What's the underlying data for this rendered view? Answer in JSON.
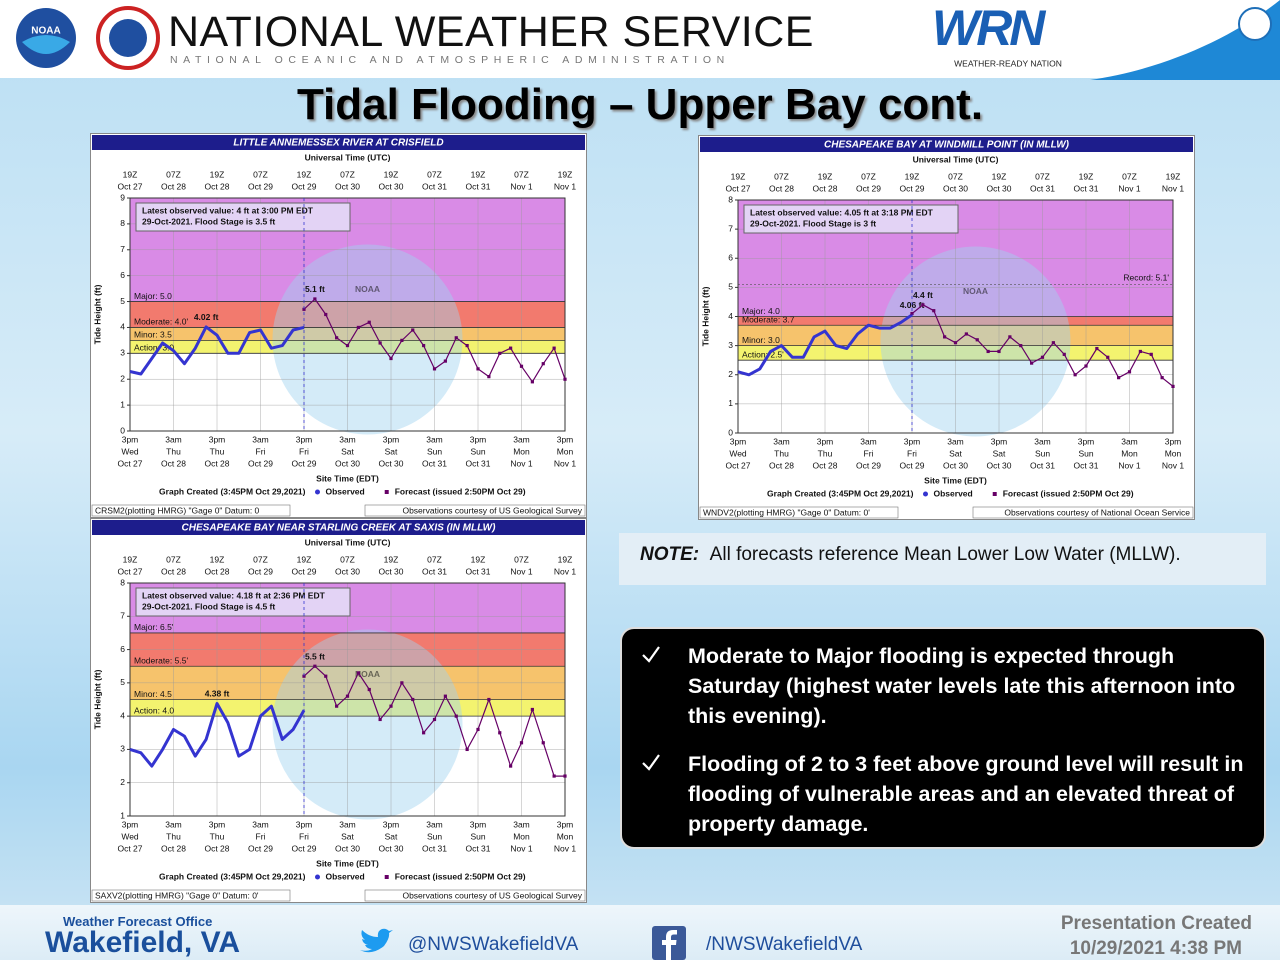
{
  "header": {
    "agency": "NATIONAL WEATHER SERVICE",
    "subtitle": "NATIONAL OCEANIC AND ATMOSPHERIC ADMINISTRATION",
    "noaa_logo": "NOAA",
    "wrn_logo": "WRN",
    "wrn_tagline": "WEATHER-READY NATION"
  },
  "title": "Tidal Flooding – Upper Bay cont.",
  "note": {
    "label": "NOTE:",
    "text": "All forecasts reference Mean Lower Low Water (MLLW)."
  },
  "bullets": [
    "Moderate to Major flooding is expected through Saturday (highest water levels late this afternoon into this evening).",
    "Flooding of 2 to 3 feet above ground level will result in flooding of vulnerable areas and an elevated threat of property damage."
  ],
  "footer": {
    "office_label": "Weather Forecast Office",
    "office": "Wakefield, VA",
    "twitter": "@NWSWakefieldVA",
    "facebook": "/NWSWakefieldVA",
    "created_label": "Presentation Created",
    "created": "10/29/2021 4:38 PM"
  },
  "chart_data": [
    {
      "type": "line",
      "title": "LITTLE ANNEMESSEX RIVER AT CRISFIELD",
      "watermark": "NOAA",
      "x_top_label": "Universal Time (UTC)",
      "x_label": "Site Time (EDT)",
      "y_label": "Tide Height (ft)",
      "utc_categories": [
        [
          "19Z",
          "Oct 27"
        ],
        null,
        null,
        null,
        [
          "07Z",
          "Oct 28"
        ],
        null,
        null,
        null,
        [
          "19Z",
          "Oct 28"
        ],
        null,
        null,
        null,
        [
          "07Z",
          "Oct 29"
        ],
        null,
        null,
        null,
        [
          "19Z",
          "Oct 29"
        ],
        null,
        null,
        null,
        [
          "07Z",
          "Oct 30"
        ],
        null,
        null,
        null,
        [
          "19Z",
          "Oct 30"
        ],
        null,
        null,
        null,
        [
          "07Z",
          "Oct 31"
        ],
        null,
        null,
        null,
        [
          "19Z",
          "Oct 31"
        ],
        null,
        null,
        null,
        [
          "07Z",
          "Nov 1"
        ],
        null,
        null,
        null,
        [
          "19Z",
          "Nov 1"
        ]
      ],
      "categories": [
        [
          "3pm",
          "Wed",
          "Oct 27"
        ],
        null,
        null,
        null,
        [
          "3am",
          "Thu",
          "Oct 28"
        ],
        null,
        null,
        null,
        [
          "3pm",
          "Thu",
          "Oct 28"
        ],
        null,
        null,
        null,
        [
          "3am",
          "Fri",
          "Oct 29"
        ],
        null,
        null,
        null,
        [
          "3pm",
          "Fri",
          "Oct 29"
        ],
        null,
        null,
        null,
        [
          "3am",
          "Sat",
          "Oct 30"
        ],
        null,
        null,
        null,
        [
          "3pm",
          "Sat",
          "Oct 30"
        ],
        null,
        null,
        null,
        [
          "3am",
          "Sun",
          "Oct 31"
        ],
        null,
        null,
        null,
        [
          "3pm",
          "Sun",
          "Oct 31"
        ],
        null,
        null,
        null,
        [
          "3am",
          "Mon",
          "Nov 1"
        ],
        null,
        null,
        null,
        [
          "3pm",
          "Mon",
          "Nov 1"
        ]
      ],
      "ylim": [
        0,
        9
      ],
      "yticks": [
        0,
        1,
        2,
        3,
        4,
        5,
        6,
        7,
        8,
        9
      ],
      "grid": true,
      "flood_stages": [
        {
          "value": 3.0,
          "label": "Action: 3.0",
          "color": "#f3f36f"
        },
        {
          "value": 3.5,
          "label": "Minor: 3.5",
          "color": "#f6c36c"
        },
        {
          "value": 4.0,
          "label": "Moderate: 4.0'",
          "color": "#f27a6e"
        },
        {
          "value": 5.0,
          "label": "Major: 5.0",
          "color": "#d98be6"
        }
      ],
      "latest": [
        "Latest observed value: 4 ft at 3:00 PM EDT",
        "29-Oct-2021. Flood Stage is 3.5 ft"
      ],
      "series": [
        {
          "name": "Observed",
          "color": "#3434d0",
          "marker": "line",
          "peak_label": "4.02 ft",
          "values": [
            2.3,
            2.2,
            2.8,
            3.4,
            3.1,
            2.6,
            3.2,
            4.02,
            3.7,
            3.0,
            3.0,
            3.8,
            3.9,
            3.2,
            3.3,
            3.9,
            4.0,
            null,
            null,
            null,
            null,
            null,
            null,
            null,
            null,
            null,
            null,
            null,
            null,
            null,
            null,
            null,
            null,
            null,
            null,
            null,
            null,
            null,
            null,
            null,
            null
          ]
        },
        {
          "name": "Forecast (issued 2:50PM Oct 29)",
          "color": "#660066",
          "marker": "square",
          "peak_label": "5.1 ft",
          "values": [
            null,
            null,
            null,
            null,
            null,
            null,
            null,
            null,
            null,
            null,
            null,
            null,
            null,
            null,
            null,
            null,
            4.7,
            5.1,
            4.5,
            3.6,
            3.3,
            4.0,
            4.2,
            3.4,
            2.8,
            3.5,
            3.9,
            3.3,
            2.4,
            2.7,
            3.6,
            3.3,
            2.4,
            2.1,
            3.0,
            3.2,
            2.5,
            1.9,
            2.6,
            3.2,
            2.0
          ]
        }
      ],
      "graph_created": "Graph Created (3:45PM Oct 29,2021)",
      "footer": [
        "CRSM2(plotting HMRG) \"Gage 0\" Datum: 0",
        "Observations courtesy of US Geological Survey"
      ]
    },
    {
      "type": "line",
      "title": "CHESAPEAKE BAY AT WINDMILL POINT (IN MLLW)",
      "watermark": "NOAA",
      "x_top_label": "Universal Time (UTC)",
      "x_label": "Site Time (EDT)",
      "y_label": "Tide Height (ft)",
      "utc_categories": [
        [
          "19Z",
          "Oct 27"
        ],
        null,
        null,
        null,
        [
          "07Z",
          "Oct 28"
        ],
        null,
        null,
        null,
        [
          "19Z",
          "Oct 28"
        ],
        null,
        null,
        null,
        [
          "07Z",
          "Oct 29"
        ],
        null,
        null,
        null,
        [
          "19Z",
          "Oct 29"
        ],
        null,
        null,
        null,
        [
          "07Z",
          "Oct 30"
        ],
        null,
        null,
        null,
        [
          "19Z",
          "Oct 30"
        ],
        null,
        null,
        null,
        [
          "07Z",
          "Oct 31"
        ],
        null,
        null,
        null,
        [
          "19Z",
          "Oct 31"
        ],
        null,
        null,
        null,
        [
          "07Z",
          "Nov 1"
        ],
        null,
        null,
        null,
        [
          "19Z",
          "Nov 1"
        ]
      ],
      "categories": [
        [
          "3pm",
          "Wed",
          "Oct 27"
        ],
        null,
        null,
        null,
        [
          "3am",
          "Thu",
          "Oct 28"
        ],
        null,
        null,
        null,
        [
          "3pm",
          "Thu",
          "Oct 28"
        ],
        null,
        null,
        null,
        [
          "3am",
          "Fri",
          "Oct 29"
        ],
        null,
        null,
        null,
        [
          "3pm",
          "Fri",
          "Oct 29"
        ],
        null,
        null,
        null,
        [
          "3am",
          "Sat",
          "Oct 30"
        ],
        null,
        null,
        null,
        [
          "3pm",
          "Sat",
          "Oct 30"
        ],
        null,
        null,
        null,
        [
          "3am",
          "Sun",
          "Oct 31"
        ],
        null,
        null,
        null,
        [
          "3pm",
          "Sun",
          "Oct 31"
        ],
        null,
        null,
        null,
        [
          "3am",
          "Mon",
          "Nov 1"
        ],
        null,
        null,
        null,
        [
          "3pm",
          "Mon",
          "Nov 1"
        ]
      ],
      "ylim": [
        0,
        8
      ],
      "yticks": [
        0,
        1,
        2,
        3,
        4,
        5,
        6,
        7,
        8
      ],
      "grid": true,
      "flood_stages": [
        {
          "value": 2.5,
          "label": "Action: 2.5'",
          "color": "#f3f36f"
        },
        {
          "value": 3.0,
          "label": "Minor: 3.0",
          "color": "#f6c36c"
        },
        {
          "value": 3.7,
          "label": "Moderate: 3.7",
          "color": "#f27a6e"
        },
        {
          "value": 4.0,
          "label": "Major: 4.0",
          "color": "#d98be6"
        }
      ],
      "record": {
        "value": 5.1,
        "label": "Record: 5.1'"
      },
      "latest": [
        "Latest observed value: 4.05 ft at 3:18 PM EDT",
        "29-Oct-2021. Flood Stage is 3 ft"
      ],
      "series": [
        {
          "name": "Observed",
          "color": "#3434d0",
          "marker": "line",
          "peak_label": "4.06 ft",
          "values": [
            2.1,
            2.0,
            2.2,
            2.8,
            3.0,
            2.6,
            2.6,
            3.3,
            3.5,
            3.0,
            2.9,
            3.4,
            3.7,
            3.6,
            3.6,
            3.8,
            4.06,
            null,
            null,
            null,
            null,
            null,
            null,
            null,
            null,
            null,
            null,
            null,
            null,
            null,
            null,
            null,
            null,
            null,
            null,
            null,
            null,
            null,
            null,
            null,
            null
          ]
        },
        {
          "name": "Forecast (issued 2:50PM Oct 29)",
          "color": "#660066",
          "marker": "square",
          "peak_label": "4.4 ft",
          "values": [
            null,
            null,
            null,
            null,
            null,
            null,
            null,
            null,
            null,
            null,
            null,
            null,
            null,
            null,
            null,
            null,
            4.1,
            4.4,
            4.2,
            3.3,
            3.1,
            3.4,
            3.2,
            2.8,
            2.8,
            3.3,
            3.0,
            2.4,
            2.6,
            3.1,
            2.7,
            2.0,
            2.3,
            2.9,
            2.6,
            1.9,
            2.1,
            2.8,
            2.7,
            1.9,
            1.6
          ]
        }
      ],
      "graph_created": "Graph Created (3:45PM Oct 29,2021)",
      "footer": [
        "WNDV2(plotting HMRG) \"Gage 0\" Datum: 0'",
        "Observations courtesy of National Ocean Service"
      ]
    },
    {
      "type": "line",
      "title": "CHESAPEAKE BAY NEAR STARLING CREEK AT SAXIS (IN MLLW)",
      "watermark": "NOAA",
      "x_top_label": "Universal Time (UTC)",
      "x_label": "Site Time (EDT)",
      "y_label": "Tide Height (ft)",
      "utc_categories": [
        [
          "19Z",
          "Oct 27"
        ],
        null,
        null,
        null,
        [
          "07Z",
          "Oct 28"
        ],
        null,
        null,
        null,
        [
          "19Z",
          "Oct 28"
        ],
        null,
        null,
        null,
        [
          "07Z",
          "Oct 29"
        ],
        null,
        null,
        null,
        [
          "19Z",
          "Oct 29"
        ],
        null,
        null,
        null,
        [
          "07Z",
          "Oct 30"
        ],
        null,
        null,
        null,
        [
          "19Z",
          "Oct 30"
        ],
        null,
        null,
        null,
        [
          "07Z",
          "Oct 31"
        ],
        null,
        null,
        null,
        [
          "19Z",
          "Oct 31"
        ],
        null,
        null,
        null,
        [
          "07Z",
          "Nov 1"
        ],
        null,
        null,
        null,
        [
          "19Z",
          "Nov 1"
        ]
      ],
      "categories": [
        [
          "3pm",
          "Wed",
          "Oct 27"
        ],
        null,
        null,
        null,
        [
          "3am",
          "Thu",
          "Oct 28"
        ],
        null,
        null,
        null,
        [
          "3pm",
          "Thu",
          "Oct 28"
        ],
        null,
        null,
        null,
        [
          "3am",
          "Fri",
          "Oct 29"
        ],
        null,
        null,
        null,
        [
          "3pm",
          "Fri",
          "Oct 29"
        ],
        null,
        null,
        null,
        [
          "3am",
          "Sat",
          "Oct 30"
        ],
        null,
        null,
        null,
        [
          "3pm",
          "Sat",
          "Oct 30"
        ],
        null,
        null,
        null,
        [
          "3am",
          "Sun",
          "Oct 31"
        ],
        null,
        null,
        null,
        [
          "3pm",
          "Sun",
          "Oct 31"
        ],
        null,
        null,
        null,
        [
          "3am",
          "Mon",
          "Nov 1"
        ],
        null,
        null,
        null,
        [
          "3pm",
          "Mon",
          "Nov 1"
        ]
      ],
      "ylim": [
        1,
        8
      ],
      "yticks": [
        1,
        2,
        3,
        4,
        5,
        6,
        7,
        8
      ],
      "grid": true,
      "flood_stages": [
        {
          "value": 4.0,
          "label": "Action: 4.0",
          "color": "#f3f36f"
        },
        {
          "value": 4.5,
          "label": "Minor: 4.5",
          "color": "#f6c36c"
        },
        {
          "value": 5.5,
          "label": "Moderate: 5.5'",
          "color": "#f27a6e"
        },
        {
          "value": 6.5,
          "label": "Major: 6.5'",
          "color": "#d98be6"
        }
      ],
      "latest": [
        "Latest observed value: 4.18 ft at 2:36 PM EDT",
        "29-Oct-2021. Flood Stage is 4.5 ft"
      ],
      "series": [
        {
          "name": "Observed",
          "color": "#3434d0",
          "marker": "line",
          "peak_label": "4.38 ft",
          "values": [
            3.0,
            2.9,
            2.5,
            3.0,
            3.6,
            3.4,
            2.8,
            3.3,
            4.38,
            3.8,
            2.8,
            3.0,
            4.0,
            4.3,
            3.3,
            3.6,
            4.18,
            null,
            null,
            null,
            null,
            null,
            null,
            null,
            null,
            null,
            null,
            null,
            null,
            null,
            null,
            null,
            null,
            null,
            null,
            null,
            null,
            null,
            null,
            null,
            null
          ]
        },
        {
          "name": "Forecast (issued 2:50PM Oct 29)",
          "color": "#660066",
          "marker": "square",
          "peak_label": "5.5 ft",
          "values": [
            null,
            null,
            null,
            null,
            null,
            null,
            null,
            null,
            null,
            null,
            null,
            null,
            null,
            null,
            null,
            null,
            5.2,
            5.5,
            5.2,
            4.3,
            4.6,
            5.3,
            4.8,
            3.9,
            4.3,
            5.0,
            4.5,
            3.5,
            3.9,
            4.6,
            4.0,
            3.0,
            3.6,
            4.5,
            3.5,
            2.5,
            3.2,
            4.2,
            3.2,
            2.2,
            2.2
          ]
        }
      ],
      "graph_created": "Graph Created (3:45PM Oct 29,2021)",
      "footer": [
        "SAXV2(plotting HMRG) \"Gage 0\" Datum: 0'",
        "Observations courtesy of US Geological Survey"
      ]
    }
  ]
}
